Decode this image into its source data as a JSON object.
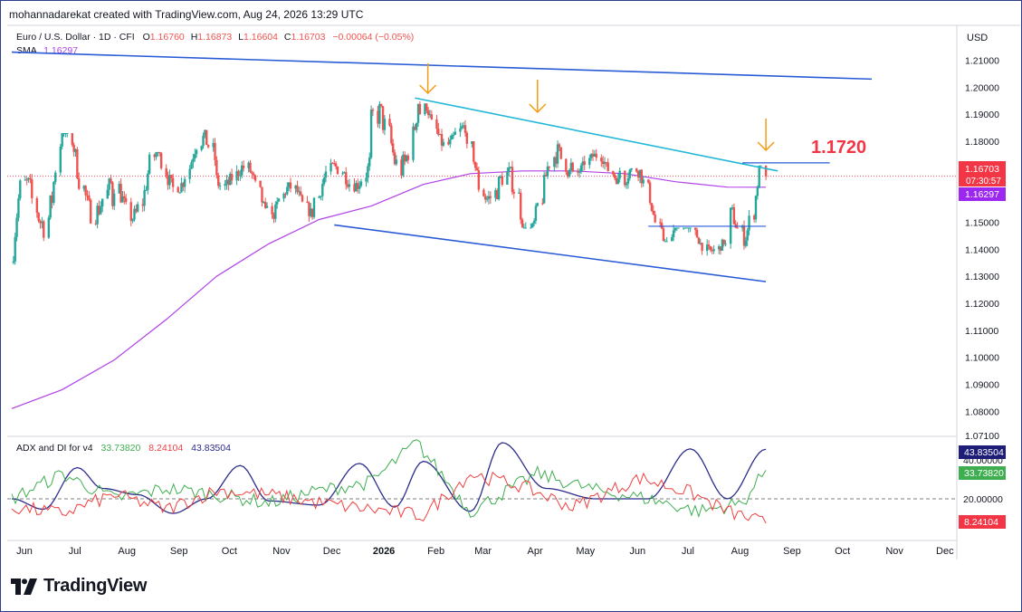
{
  "header": {
    "attribution": "mohannadarekat created with TradingView.com, Aug 24, 2026 13:29 UTC"
  },
  "legend": {
    "symbol": "Euro / U.S. Dollar · 1D · CFI",
    "open_label": "O",
    "open": "1.16760",
    "high_label": "H",
    "high": "1.16873",
    "low_label": "L",
    "low": "1.16604",
    "close_label": "C",
    "close": "1.16703",
    "change": "−0.00064 (−0.05%)",
    "sma_label": "SMA",
    "sma_value": "1.16297"
  },
  "indicator_legend": {
    "title": "ADX and DI for v4",
    "plus_di": "33.73820",
    "minus_di": "8.24104",
    "adx": "43.83504"
  },
  "price_axis": {
    "currency": "USD",
    "ticks": [
      "1.21000",
      "1.20000",
      "1.19000",
      "1.18000",
      "1.17000",
      "1.16000",
      "1.15000",
      "1.14000",
      "1.13000",
      "1.12000",
      "1.11000",
      "1.10000",
      "1.09000",
      "1.08000",
      "1.07100"
    ],
    "last_price": "1.16703",
    "countdown": "07:30:57",
    "sma_badge": "1.16297"
  },
  "indicator_axis": {
    "ticks": [
      "40.00000",
      "20.00000"
    ],
    "adx_badge": "43.83504",
    "plus_badge": "33.73820",
    "minus_badge": "8.24104"
  },
  "time_axis": [
    "Jun",
    "Jul",
    "Aug",
    "Sep",
    "Oct",
    "Nov",
    "Dec",
    "2026",
    "Feb",
    "Mar",
    "Apr",
    "May",
    "Jun",
    "Jul",
    "Aug",
    "Sep",
    "Oct",
    "Nov",
    "Dec"
  ],
  "annotation": {
    "level": "1.1720"
  },
  "brand": {
    "name": "TradingView"
  },
  "colors": {
    "up": "#26a69a",
    "down": "#ef5350",
    "sma": "#b040e8",
    "trend": "#2a5bd7",
    "resistance": "#22b8d6",
    "arrow": "#f39c12",
    "level": "#f23645",
    "adx": "#2c2c8c",
    "plus_di": "#3eae50",
    "minus_di": "#f04040"
  },
  "chart_data": [
    {
      "type": "candlestick",
      "title": "Euro / U.S. Dollar · 1D · CFI",
      "x_range": [
        "2025-06-01",
        "2026-12-31"
      ],
      "ylim": [
        1.068,
        1.218
      ],
      "y_scale": "linear",
      "grid": false,
      "last_bar": {
        "date": "2026-08-24",
        "open": 1.1676,
        "high": 1.16873,
        "low": 1.16604,
        "close": 1.16703
      },
      "monthly_ohlc": [
        {
          "month": "2025-06",
          "open": 1.135,
          "high": 1.179,
          "low": 1.121,
          "close": 1.178
        },
        {
          "month": "2025-07",
          "open": 1.178,
          "high": 1.183,
          "low": 1.144,
          "close": 1.156
        },
        {
          "month": "2025-08",
          "open": 1.156,
          "high": 1.176,
          "low": 1.14,
          "close": 1.17
        },
        {
          "month": "2025-09",
          "open": 1.17,
          "high": 1.192,
          "low": 1.161,
          "close": 1.173
        },
        {
          "month": "2025-10",
          "open": 1.173,
          "high": 1.178,
          "low": 1.152,
          "close": 1.156
        },
        {
          "month": "2025-11",
          "open": 1.156,
          "high": 1.167,
          "low": 1.147,
          "close": 1.159
        },
        {
          "month": "2025-12",
          "open": 1.159,
          "high": 1.181,
          "low": 1.157,
          "close": 1.174
        },
        {
          "month": "2026-01",
          "open": 1.174,
          "high": 1.208,
          "low": 1.158,
          "close": 1.19
        },
        {
          "month": "2026-02",
          "open": 1.19,
          "high": 1.194,
          "low": 1.173,
          "close": 1.179
        },
        {
          "month": "2026-03",
          "open": 1.179,
          "high": 1.18,
          "low": 1.142,
          "close": 1.151
        },
        {
          "month": "2026-04",
          "open": 1.151,
          "high": 1.185,
          "low": 1.148,
          "close": 1.172
        },
        {
          "month": "2026-05",
          "open": 1.172,
          "high": 1.179,
          "low": 1.164,
          "close": 1.169
        },
        {
          "month": "2026-06",
          "open": 1.169,
          "high": 1.17,
          "low": 1.143,
          "close": 1.147
        },
        {
          "month": "2026-07",
          "open": 1.147,
          "high": 1.148,
          "low": 1.133,
          "close": 1.142
        },
        {
          "month": "2026-08",
          "open": 1.142,
          "high": 1.171,
          "low": 1.137,
          "close": 1.167
        }
      ],
      "sma": [
        {
          "date": "2025-06-01",
          "value": 1.081
        },
        {
          "date": "2025-07-01",
          "value": 1.088
        },
        {
          "date": "2025-08-01",
          "value": 1.099
        },
        {
          "date": "2025-09-01",
          "value": 1.114
        },
        {
          "date": "2025-10-01",
          "value": 1.13
        },
        {
          "date": "2025-11-01",
          "value": 1.142
        },
        {
          "date": "2025-12-01",
          "value": 1.151
        },
        {
          "date": "2026-01-01",
          "value": 1.156
        },
        {
          "date": "2026-02-01",
          "value": 1.164
        },
        {
          "date": "2026-03-01",
          "value": 1.168
        },
        {
          "date": "2026-04-01",
          "value": 1.169
        },
        {
          "date": "2026-05-01",
          "value": 1.169
        },
        {
          "date": "2026-06-01",
          "value": 1.168
        },
        {
          "date": "2026-07-01",
          "value": 1.165
        },
        {
          "date": "2026-08-01",
          "value": 1.163
        },
        {
          "date": "2026-08-24",
          "value": 1.16297
        }
      ],
      "trendlines": [
        {
          "name": "upper channel",
          "from": {
            "date": "2025-06-01",
            "price": 1.213
          },
          "to": {
            "date": "2026-10-26",
            "price": 1.203
          }
        },
        {
          "name": "lower channel",
          "from": {
            "date": "2025-12-10",
            "price": 1.149
          },
          "to": {
            "date": "2026-08-24",
            "price": 1.128
          }
        },
        {
          "name": "descending resistance",
          "from": {
            "date": "2026-01-27",
            "price": 1.196
          },
          "to": {
            "date": "2026-08-31",
            "price": 1.169
          }
        },
        {
          "name": "level 1.1720",
          "from": {
            "date": "2026-08-10",
            "price": 1.172
          },
          "to": {
            "date": "2026-10-01",
            "price": 1.172
          }
        },
        {
          "name": "level 1.1485",
          "from": {
            "date": "2026-06-15",
            "price": 1.1485
          },
          "to": {
            "date": "2026-08-24",
            "price": 1.1485
          }
        }
      ],
      "arrows": [
        "2026-02-01",
        "2026-04-10",
        "2026-08-24"
      ]
    },
    {
      "type": "line",
      "title": "ADX and DI for v4",
      "ylim": [
        0,
        60
      ],
      "reference_level": 20,
      "series": [
        {
          "name": "ADX",
          "values": [
            {
              "date": "2025-06-01",
              "v": 20
            },
            {
              "date": "2025-06-20",
              "v": 15
            },
            {
              "date": "2025-07-10",
              "v": 35
            },
            {
              "date": "2025-07-25",
              "v": 25
            },
            {
              "date": "2025-08-15",
              "v": 22
            },
            {
              "date": "2025-09-05",
              "v": 13
            },
            {
              "date": "2025-09-25",
              "v": 20
            },
            {
              "date": "2025-10-15",
              "v": 36
            },
            {
              "date": "2025-11-01",
              "v": 19
            },
            {
              "date": "2025-12-01",
              "v": 17
            },
            {
              "date": "2025-12-25",
              "v": 37
            },
            {
              "date": "2026-01-15",
              "v": 16
            },
            {
              "date": "2026-02-01",
              "v": 38
            },
            {
              "date": "2026-03-01",
              "v": 14
            },
            {
              "date": "2026-03-20",
              "v": 47
            },
            {
              "date": "2026-04-15",
              "v": 25
            },
            {
              "date": "2026-05-15",
              "v": 20
            },
            {
              "date": "2026-06-15",
              "v": 20
            },
            {
              "date": "2026-07-10",
              "v": 44
            },
            {
              "date": "2026-08-01",
              "v": 20
            },
            {
              "date": "2026-08-24",
              "v": 43.83504
            }
          ]
        },
        {
          "name": "+DI",
          "values": [
            {
              "date": "2025-06-01",
              "v": 20
            },
            {
              "date": "2025-07-01",
              "v": 32
            },
            {
              "date": "2025-08-01",
              "v": 20
            },
            {
              "date": "2025-09-01",
              "v": 25
            },
            {
              "date": "2025-10-01",
              "v": 22
            },
            {
              "date": "2025-11-01",
              "v": 18
            },
            {
              "date": "2025-12-01",
              "v": 24
            },
            {
              "date": "2026-01-01",
              "v": 28
            },
            {
              "date": "2026-01-28",
              "v": 47
            },
            {
              "date": "2026-03-01",
              "v": 14
            },
            {
              "date": "2026-04-10",
              "v": 32
            },
            {
              "date": "2026-05-15",
              "v": 24
            },
            {
              "date": "2026-06-15",
              "v": 20
            },
            {
              "date": "2026-07-15",
              "v": 14
            },
            {
              "date": "2026-08-10",
              "v": 18
            },
            {
              "date": "2026-08-24",
              "v": 33.7382
            }
          ]
        },
        {
          "name": "−DI",
          "values": [
            {
              "date": "2025-06-01",
              "v": 16
            },
            {
              "date": "2025-07-01",
              "v": 13
            },
            {
              "date": "2025-08-01",
              "v": 22
            },
            {
              "date": "2025-09-01",
              "v": 15
            },
            {
              "date": "2025-10-01",
              "v": 24
            },
            {
              "date": "2025-11-01",
              "v": 22
            },
            {
              "date": "2025-12-01",
              "v": 18
            },
            {
              "date": "2026-01-01",
              "v": 15
            },
            {
              "date": "2026-02-01",
              "v": 12
            },
            {
              "date": "2026-03-01",
              "v": 32
            },
            {
              "date": "2026-04-01",
              "v": 26
            },
            {
              "date": "2026-05-01",
              "v": 16
            },
            {
              "date": "2026-06-10",
              "v": 30
            },
            {
              "date": "2026-07-10",
              "v": 23
            },
            {
              "date": "2026-08-01",
              "v": 14
            },
            {
              "date": "2026-08-24",
              "v": 8.24104
            }
          ]
        }
      ]
    }
  ]
}
